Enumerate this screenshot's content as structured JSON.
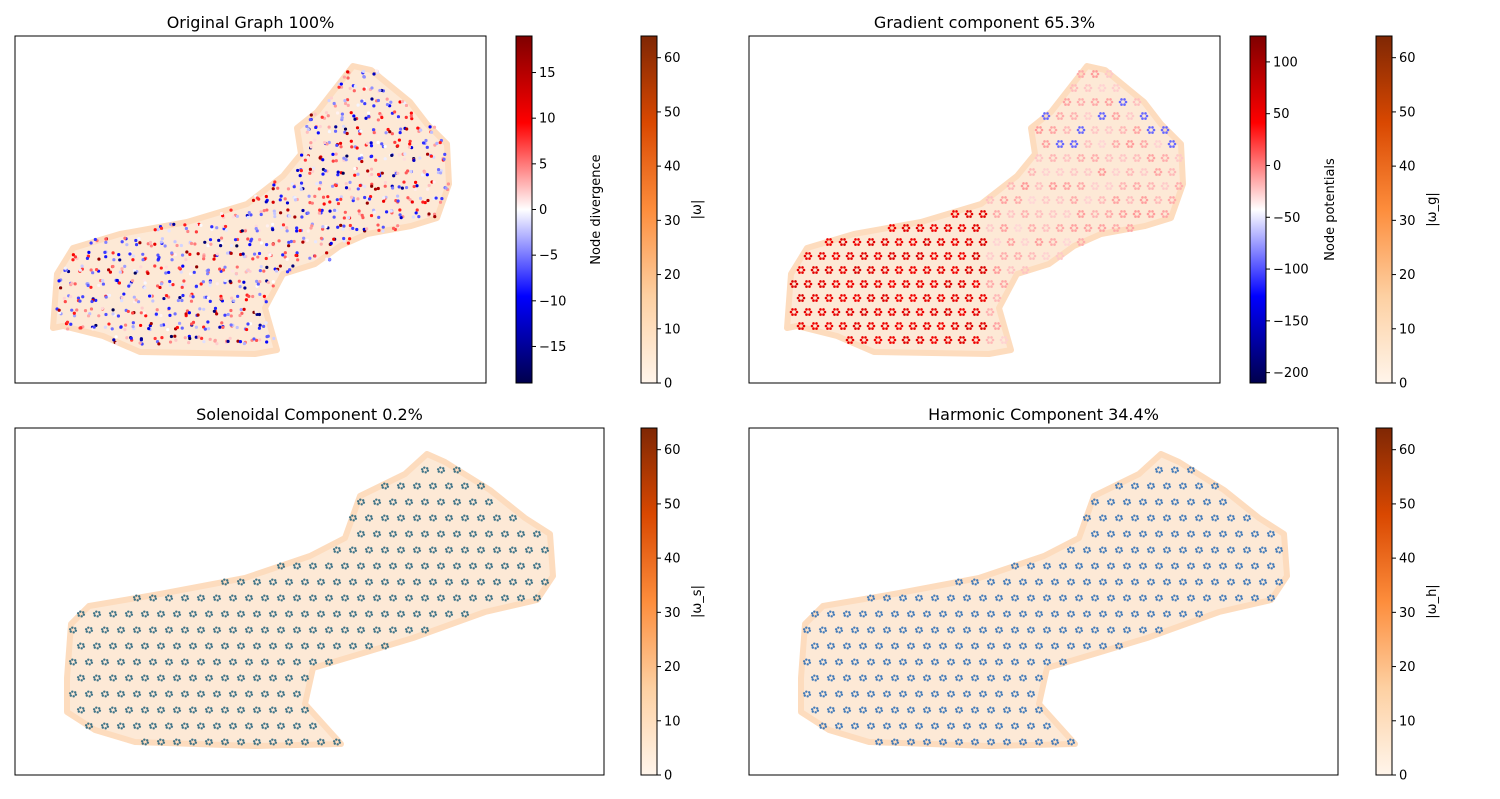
{
  "chart_data": [
    {
      "type": "scatter",
      "title": "Original Graph 100%",
      "shape": "upper",
      "node_fill": "divergence",
      "edge_cmap": "oranges",
      "colorbars": [
        {
          "label": "Node divergence",
          "cmap": "seismic",
          "range": [
            -19,
            19
          ],
          "ticks": [
            15,
            10,
            5,
            0,
            -5,
            -10,
            -15
          ],
          "tick_labels": [
            "15",
            "10",
            "5",
            "0",
            "−5",
            "−10",
            "−15"
          ]
        },
        {
          "label": "|ω|",
          "cmap": "oranges",
          "range": [
            0,
            64
          ],
          "ticks": [
            60,
            50,
            40,
            30,
            20,
            10,
            0
          ],
          "tick_labels": [
            "60",
            "50",
            "40",
            "30",
            "20",
            "10",
            "0"
          ]
        }
      ]
    },
    {
      "type": "scatter",
      "title": "Gradient component 65.3%",
      "shape": "upper",
      "node_fill": "potential",
      "edge_cmap": "oranges",
      "colorbars": [
        {
          "label": "Node potentials",
          "cmap": "seismic",
          "range": [
            -210,
            125
          ],
          "ticks": [
            100,
            50,
            0,
            -50,
            -100,
            -150,
            -200
          ],
          "tick_labels": [
            "100",
            "50",
            "0",
            "−50",
            "−100",
            "−150",
            "−200"
          ]
        },
        {
          "label": "|ω_g|",
          "cmap": "oranges",
          "range": [
            0,
            64
          ],
          "ticks": [
            60,
            50,
            40,
            30,
            20,
            10,
            0
          ],
          "tick_labels": [
            "60",
            "50",
            "40",
            "30",
            "20",
            "10",
            "0"
          ]
        }
      ]
    },
    {
      "type": "scatter",
      "title": "Solenoidal Component 0.2%",
      "shape": "lower",
      "node_fill": "teal",
      "node_color": "#1f5f7a",
      "edge_cmap": "oranges",
      "colorbars": [
        {
          "label": "|ω_s|",
          "cmap": "oranges",
          "range": [
            0,
            64
          ],
          "ticks": [
            60,
            50,
            40,
            30,
            20,
            10,
            0
          ],
          "tick_labels": [
            "60",
            "50",
            "40",
            "30",
            "20",
            "10",
            "0"
          ]
        }
      ]
    },
    {
      "type": "scatter",
      "title": "Harmonic Component 34.4%",
      "shape": "lower",
      "node_fill": "blue",
      "node_color": "#2468b4",
      "edge_cmap": "oranges",
      "colorbars": [
        {
          "label": "|ω_h|",
          "cmap": "oranges",
          "range": [
            0,
            64
          ],
          "ticks": [
            60,
            50,
            40,
            30,
            20,
            10,
            0
          ],
          "tick_labels": [
            "60",
            "50",
            "40",
            "30",
            "20",
            "10",
            "0"
          ]
        }
      ]
    }
  ]
}
